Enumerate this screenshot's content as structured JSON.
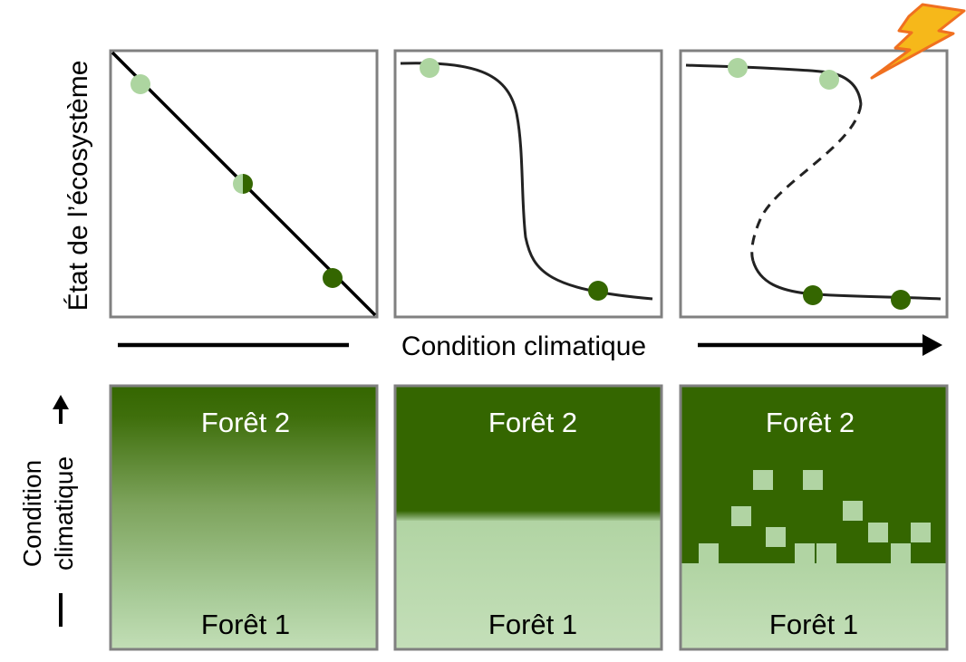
{
  "top": {
    "y_axis_label": "État de l’écosystème",
    "x_axis_label": "Condition climatique",
    "panels": [
      {
        "name": "linear"
      },
      {
        "name": "abrupt"
      },
      {
        "name": "bistable"
      }
    ]
  },
  "bottom": {
    "y_axis_label_line1": "Condition",
    "y_axis_label_line2": "climatique",
    "panels": [
      {
        "top_label": "Forêt 2",
        "bottom_label": "Forêt 1"
      },
      {
        "top_label": "Forêt 2",
        "bottom_label": "Forêt 1"
      },
      {
        "top_label": "Forêt 2",
        "bottom_label": "Forêt 1"
      }
    ]
  },
  "colors": {
    "dark_green": "#346600",
    "light_green": "#b8d8ac",
    "frame": "#808080",
    "curve": "#222222",
    "bolt_fill": "#f6b81a",
    "bolt_stroke": "#f07020"
  },
  "icons": {
    "disturbance": "lightning-bolt-icon"
  }
}
